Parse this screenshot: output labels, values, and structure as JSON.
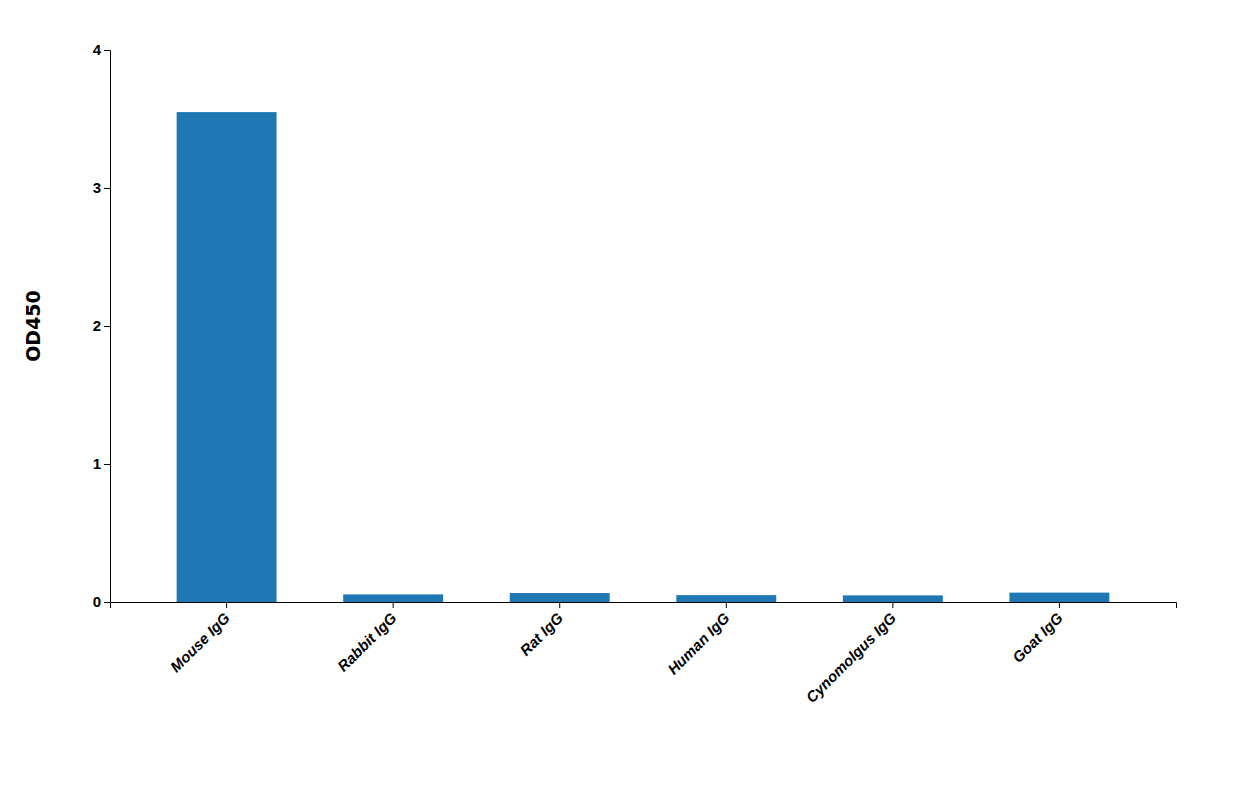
{
  "chart_data": {
    "type": "bar",
    "categories": [
      "Mouse IgG",
      "Rabbit IgG",
      "Rat IgG",
      "Human IgG",
      "Cynomolgus IgG",
      "Goat IgG"
    ],
    "values": [
      3.55,
      0.055,
      0.065,
      0.05,
      0.048,
      0.068
    ],
    "y_label": "OD450",
    "ylim": [
      0,
      4.0
    ],
    "yticks": [
      0,
      1,
      2,
      3,
      4
    ],
    "grid": false
  }
}
